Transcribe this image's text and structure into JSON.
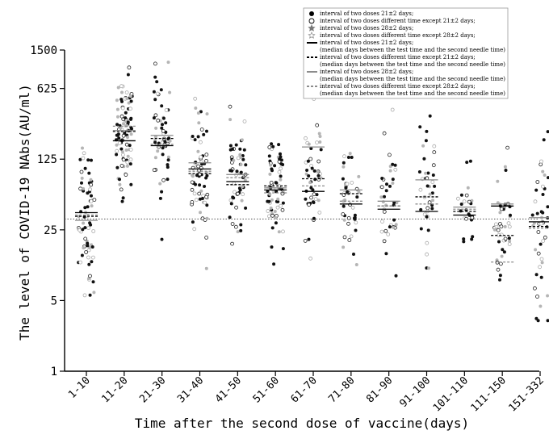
{
  "chart_data": {
    "type": "scatter",
    "ylabel": "The level of COVID-19 NAbs(AU/ml)",
    "xlabel": "Time after the second dose of vaccine(days)",
    "y_scale": "log",
    "ylim": [
      1,
      1500
    ],
    "y_ticks": [
      1,
      5,
      25,
      125,
      625,
      1500
    ],
    "categories": [
      "1-10",
      "11-20",
      "21-30",
      "31-40",
      "41-50",
      "51-60",
      "61-70",
      "71-80",
      "81-90",
      "91-100",
      "101-110",
      "111-150",
      "151-332"
    ],
    "reference_line": 32,
    "legend_position": "top-right",
    "legend": [
      {
        "symbol": "filled-circle",
        "label": "interval of two doses 21±2 days;"
      },
      {
        "symbol": "open-circle",
        "label": "interval of two doses different time except 21±2 days;"
      },
      {
        "symbol": "filled-star",
        "label": "interval of two doses 28±2 days;"
      },
      {
        "symbol": "open-star",
        "label": "interval of two doses different time except 28±2 days;"
      },
      {
        "symbol": "solid-black",
        "label": "interval of two doses 21±2 days;",
        "note": "(median days between the test time and the second needle time)"
      },
      {
        "symbol": "dashed-black",
        "label": "interval of two doses different time except 21±2 days;",
        "note": "(median days between the test time and the second needle time)"
      },
      {
        "symbol": "solid-gray",
        "label": "interval of two doses 28±2 days;",
        "note": "(median days between the test time and the second needle time)"
      },
      {
        "symbol": "dashed-gray",
        "label": "interval of two doses different time except 28±2 days;",
        "note": "(median days between the test time and the second needle time)"
      }
    ],
    "series": [
      {
        "key": "black_solid",
        "values": [
          37,
          190,
          170,
          100,
          75,
          62,
          60,
          45,
          40,
          38,
          35,
          43,
          30
        ]
      },
      {
        "key": "black_dashed",
        "values": [
          34,
          235,
          200,
          90,
          70,
          68,
          80,
          57,
          43,
          53,
          38,
          22,
          27
        ]
      },
      {
        "key": "gray_solid",
        "values": [
          31,
          240,
          215,
          115,
          88,
          65,
          165,
          62,
          48,
          78,
          42,
          45,
          33
        ]
      },
      {
        "key": "gray_dashed",
        "values": [
          35,
          265,
          175,
          95,
          82,
          58,
          68,
          48,
          43,
          45,
          40,
          12,
          26
        ]
      }
    ]
  }
}
